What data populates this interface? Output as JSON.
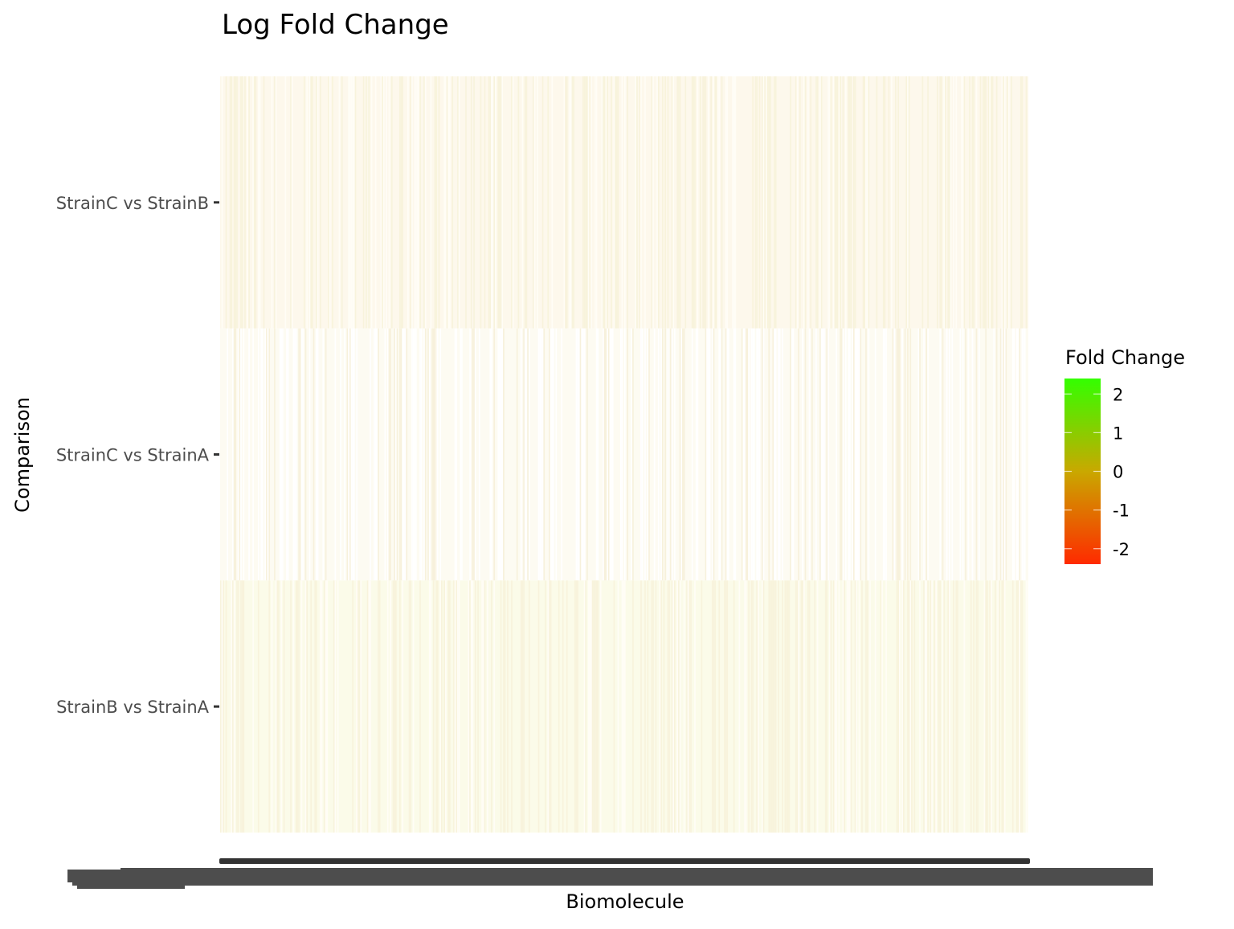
{
  "chart_data": {
    "type": "heatmap",
    "title": "Log Fold Change",
    "xlabel": "Biomolecule",
    "ylabel": "Comparison",
    "rows": [
      "StrainC vs StrainB",
      "StrainC vs StrainA",
      "StrainB vs StrainA"
    ],
    "legend": {
      "title": "Fold Change",
      "ticks": [
        2,
        1,
        0,
        -1,
        -2
      ],
      "tick_labels": [
        "2",
        "1",
        "0",
        "-1",
        "-2"
      ],
      "range": [
        -2.4,
        2.4
      ],
      "colors": {
        "low": "#ff2a00",
        "mid": "#c9a800",
        "high": "#33ff00"
      },
      "placement": "right"
    },
    "grid": false,
    "columns_count": 600,
    "row_fill_colors": [
      "#fdf8ec",
      "#fdfbf2",
      "#fbfbe9"
    ],
    "x_tick_labels_note": "overplotted, illegible"
  }
}
